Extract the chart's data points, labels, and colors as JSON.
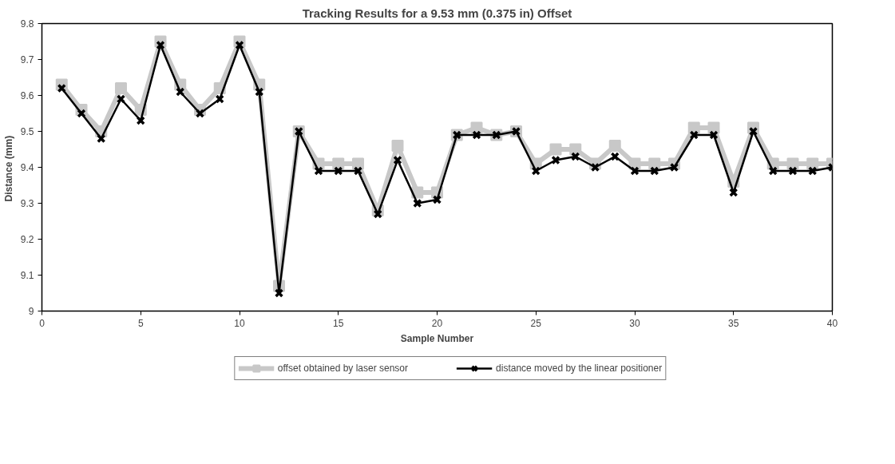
{
  "chart_data": {
    "type": "line",
    "title": "Tracking Results for a 9.53 mm (0.375 in) Offset",
    "xlabel": "Sample Number",
    "ylabel": "Distance  (mm)",
    "x": [
      1,
      2,
      3,
      4,
      5,
      6,
      7,
      8,
      9,
      10,
      11,
      12,
      13,
      14,
      15,
      16,
      17,
      18,
      19,
      20,
      21,
      22,
      23,
      24,
      25,
      26,
      27,
      28,
      29,
      30,
      31,
      32,
      33,
      34,
      35,
      36,
      37,
      38,
      39,
      40
    ],
    "series": [
      {
        "name": "offset obtained by laser sensor",
        "color": "#c8c8c8",
        "marker": "square",
        "values": [
          9.63,
          9.56,
          9.5,
          9.62,
          9.56,
          9.75,
          9.63,
          9.56,
          9.62,
          9.75,
          9.63,
          9.07,
          9.5,
          9.41,
          9.41,
          9.41,
          9.28,
          9.46,
          9.33,
          9.33,
          9.49,
          9.51,
          9.49,
          9.5,
          9.41,
          9.45,
          9.45,
          9.41,
          9.46,
          9.41,
          9.41,
          9.41,
          9.51,
          9.51,
          9.36,
          9.51,
          9.41,
          9.41,
          9.41,
          9.41
        ]
      },
      {
        "name": "distance moved by the linear positioner",
        "color": "#000000",
        "marker": "cross",
        "values": [
          9.62,
          9.55,
          9.48,
          9.59,
          9.53,
          9.74,
          9.61,
          9.55,
          9.59,
          9.74,
          9.61,
          9.05,
          9.5,
          9.39,
          9.39,
          9.39,
          9.27,
          9.42,
          9.3,
          9.31,
          9.49,
          9.49,
          9.49,
          9.5,
          9.39,
          9.42,
          9.43,
          9.4,
          9.43,
          9.39,
          9.39,
          9.4,
          9.49,
          9.49,
          9.33,
          9.5,
          9.39,
          9.39,
          9.39,
          9.4
        ]
      }
    ],
    "xlim": [
      0,
      40
    ],
    "xticks": [
      0,
      5,
      10,
      15,
      20,
      25,
      30,
      35,
      40
    ],
    "ylim": [
      9,
      9.8
    ],
    "yticks": [
      {
        "value": 9,
        "label": "9"
      },
      9.1,
      9.2,
      9.3,
      9.4,
      9.5,
      9.6,
      9.7,
      9.8
    ],
    "grid": false,
    "legend": "bottom",
    "line_style": "solid"
  }
}
